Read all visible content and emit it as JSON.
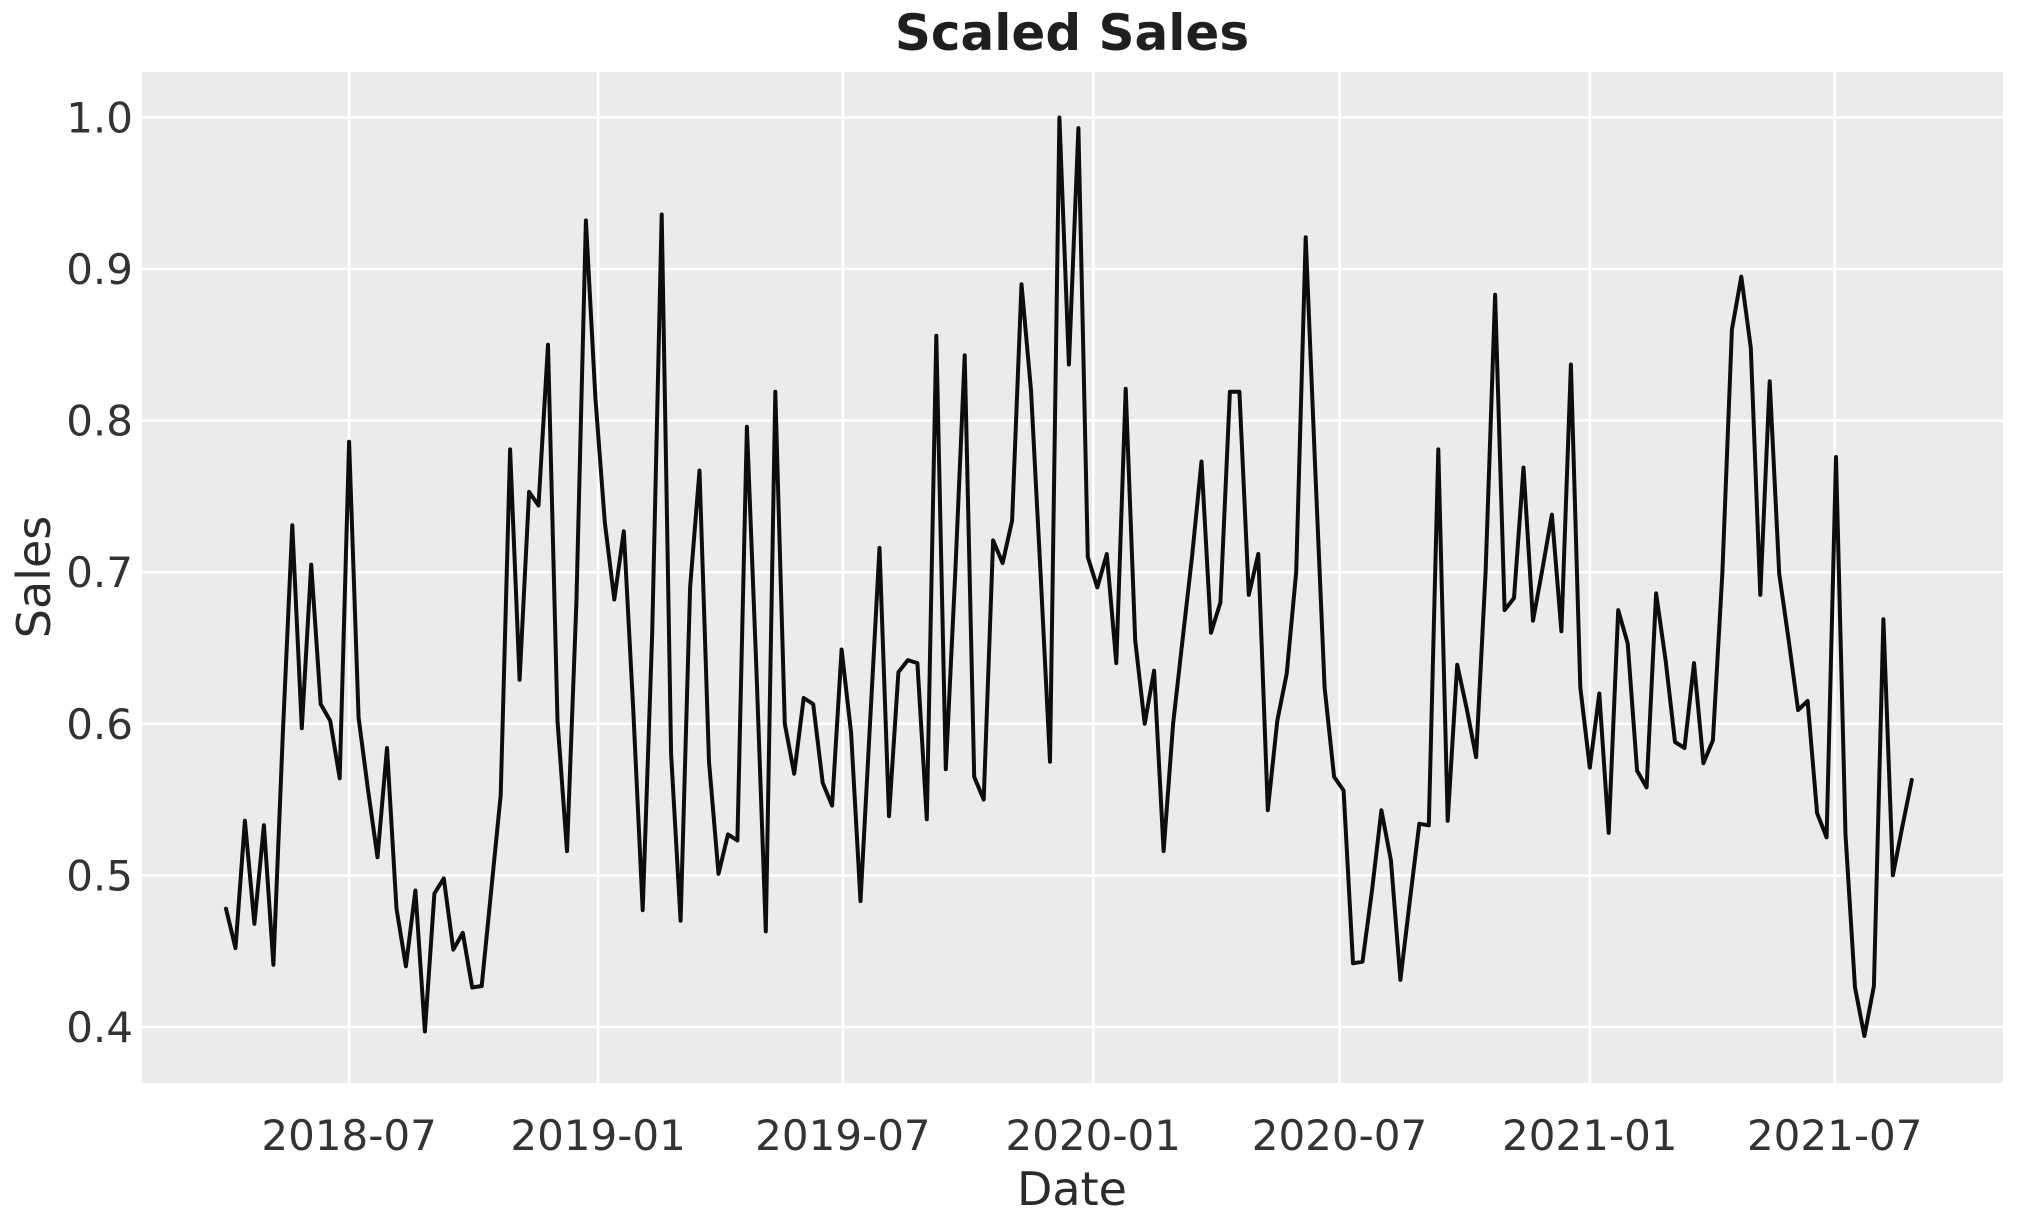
{
  "figure": {
    "background_color": "#ffffff",
    "plot_background_color": "#ebebeb",
    "gridline_color": "#ffffff",
    "line_color": "#0d0d0d",
    "text_color": "#333333"
  },
  "chart_data": {
    "type": "line",
    "title": "Scaled Sales",
    "xlabel": "Date",
    "ylabel": "Sales",
    "legend": "none",
    "grid": "on",
    "frequency": "weekly",
    "ylim": [
      0.363,
      1.03
    ],
    "xlim_index": [
      -8.87,
      187.63
    ],
    "y_ticks": [
      {
        "label": "1.0",
        "v": 1.0
      },
      {
        "label": "0.9",
        "v": 0.9
      },
      {
        "label": "0.8",
        "v": 0.8
      },
      {
        "label": "0.7",
        "v": 0.7
      },
      {
        "label": "0.6",
        "v": 0.6
      },
      {
        "label": "0.5",
        "v": 0.5
      },
      {
        "label": "0.4",
        "v": 0.4
      }
    ],
    "x_ticks": [
      {
        "label": "2018-07",
        "i": 13.0
      },
      {
        "label": "2019-01",
        "i": 39.29
      },
      {
        "label": "2019-07",
        "i": 65.14
      },
      {
        "label": "2020-01",
        "i": 91.57
      },
      {
        "label": "2020-07",
        "i": 117.57
      },
      {
        "label": "2021-01",
        "i": 144.0
      },
      {
        "label": "2021-07",
        "i": 169.86
      }
    ],
    "series": [
      {
        "name": "Sales",
        "color": "#0d0d0d",
        "dates": [
          "2018-04-01",
          "2018-04-08",
          "2018-04-15",
          "2018-04-22",
          "2018-04-29",
          "2018-05-06",
          "2018-05-13",
          "2018-05-20",
          "2018-05-27",
          "2018-06-03",
          "2018-06-10",
          "2018-06-17",
          "2018-06-24",
          "2018-07-01",
          "2018-07-08",
          "2018-07-15",
          "2018-07-22",
          "2018-07-29",
          "2018-08-05",
          "2018-08-12",
          "2018-08-19",
          "2018-08-26",
          "2018-09-02",
          "2018-09-09",
          "2018-09-16",
          "2018-09-23",
          "2018-09-30",
          "2018-10-07",
          "2018-10-14",
          "2018-10-21",
          "2018-10-28",
          "2018-11-04",
          "2018-11-11",
          "2018-11-18",
          "2018-11-25",
          "2018-12-02",
          "2018-12-09",
          "2018-12-16",
          "2018-12-23",
          "2018-12-30",
          "2019-01-06",
          "2019-01-13",
          "2019-01-20",
          "2019-01-27",
          "2019-02-03",
          "2019-02-10",
          "2019-02-17",
          "2019-02-24",
          "2019-03-03",
          "2019-03-10",
          "2019-03-17",
          "2019-03-24",
          "2019-03-31",
          "2019-04-07",
          "2019-04-14",
          "2019-04-21",
          "2019-04-28",
          "2019-05-05",
          "2019-05-12",
          "2019-05-19",
          "2019-05-26",
          "2019-06-02",
          "2019-06-09",
          "2019-06-16",
          "2019-06-23",
          "2019-06-30",
          "2019-07-07",
          "2019-07-14",
          "2019-07-21",
          "2019-07-28",
          "2019-08-04",
          "2019-08-11",
          "2019-08-18",
          "2019-08-25",
          "2019-09-01",
          "2019-09-08",
          "2019-09-15",
          "2019-09-22",
          "2019-09-29",
          "2019-10-06",
          "2019-10-13",
          "2019-10-20",
          "2019-10-27",
          "2019-11-03",
          "2019-11-10",
          "2019-11-17",
          "2019-11-24",
          "2019-12-01",
          "2019-12-08",
          "2019-12-15",
          "2019-12-22",
          "2019-12-29",
          "2020-01-05",
          "2020-01-12",
          "2020-01-19",
          "2020-01-26",
          "2020-02-02",
          "2020-02-09",
          "2020-02-16",
          "2020-02-23",
          "2020-03-01",
          "2020-03-08",
          "2020-03-15",
          "2020-03-22",
          "2020-03-29",
          "2020-04-05",
          "2020-04-12",
          "2020-04-19",
          "2020-04-26",
          "2020-05-03",
          "2020-05-10",
          "2020-05-17",
          "2020-05-24",
          "2020-05-31",
          "2020-06-07",
          "2020-06-14",
          "2020-06-21",
          "2020-06-28",
          "2020-07-05",
          "2020-07-12",
          "2020-07-19",
          "2020-07-26",
          "2020-08-02",
          "2020-08-09",
          "2020-08-16",
          "2020-08-23",
          "2020-08-30",
          "2020-09-06",
          "2020-09-13",
          "2020-09-20",
          "2020-09-27",
          "2020-10-04",
          "2020-10-11",
          "2020-10-18",
          "2020-10-25",
          "2020-11-01",
          "2020-11-08",
          "2020-11-15",
          "2020-11-22",
          "2020-11-29",
          "2020-12-06",
          "2020-12-13",
          "2020-12-20",
          "2020-12-27",
          "2021-01-03",
          "2021-01-10",
          "2021-01-17",
          "2021-01-24",
          "2021-01-31",
          "2021-02-07",
          "2021-02-14",
          "2021-02-21",
          "2021-02-28",
          "2021-03-07",
          "2021-03-14",
          "2021-03-21",
          "2021-03-28",
          "2021-04-04",
          "2021-04-11",
          "2021-04-18",
          "2021-04-25",
          "2021-05-02",
          "2021-05-09",
          "2021-05-16",
          "2021-05-23",
          "2021-05-30",
          "2021-06-06",
          "2021-06-13",
          "2021-06-20",
          "2021-06-27",
          "2021-07-04",
          "2021-07-11",
          "2021-07-18",
          "2021-07-25",
          "2021-08-01",
          "2021-08-08",
          "2021-08-15",
          "2021-08-22",
          "2021-08-29"
        ],
        "values": [
          0.478,
          0.452,
          0.536,
          0.468,
          0.533,
          0.441,
          0.593,
          0.731,
          0.597,
          0.705,
          0.613,
          0.602,
          0.564,
          0.786,
          0.604,
          0.556,
          0.512,
          0.584,
          0.478,
          0.44,
          0.49,
          0.397,
          0.488,
          0.498,
          0.451,
          0.462,
          0.426,
          0.427,
          0.49,
          0.553,
          0.781,
          0.629,
          0.753,
          0.744,
          0.85,
          0.602,
          0.516,
          0.68,
          0.932,
          0.815,
          0.733,
          0.682,
          0.727,
          0.61,
          0.477,
          0.66,
          0.936,
          0.58,
          0.47,
          0.69,
          0.767,
          0.575,
          0.501,
          0.527,
          0.523,
          0.796,
          0.636,
          0.463,
          0.819,
          0.6,
          0.567,
          0.617,
          0.613,
          0.561,
          0.546,
          0.649,
          0.594,
          0.483,
          0.6,
          0.716,
          0.539,
          0.634,
          0.642,
          0.64,
          0.537,
          0.856,
          0.57,
          0.7,
          0.843,
          0.565,
          0.55,
          0.721,
          0.706,
          0.734,
          0.89,
          0.82,
          0.7,
          0.575,
          1.0,
          0.837,
          0.993,
          0.71,
          0.69,
          0.712,
          0.64,
          0.821,
          0.655,
          0.6,
          0.635,
          0.516,
          0.6,
          0.655,
          0.71,
          0.773,
          0.66,
          0.68,
          0.819,
          0.819,
          0.685,
          0.712,
          0.543,
          0.602,
          0.633,
          0.7,
          0.921,
          0.77,
          0.624,
          0.565,
          0.556,
          0.442,
          0.443,
          0.49,
          0.543,
          0.51,
          0.431,
          0.483,
          0.534,
          0.533,
          0.781,
          0.536,
          0.639,
          0.61,
          0.578,
          0.7,
          0.883,
          0.675,
          0.683,
          0.769,
          0.668,
          0.702,
          0.738,
          0.661,
          0.837,
          0.624,
          0.571,
          0.62,
          0.528,
          0.675,
          0.653,
          0.569,
          0.558,
          0.686,
          0.642,
          0.588,
          0.584,
          0.64,
          0.574,
          0.589,
          0.7,
          0.86,
          0.895,
          0.848,
          0.685,
          0.826,
          0.699,
          0.655,
          0.609,
          0.615,
          0.541,
          0.525,
          0.776,
          0.527,
          0.426,
          0.394,
          0.427,
          0.669,
          0.5,
          0.532,
          0.563
        ]
      }
    ]
  }
}
